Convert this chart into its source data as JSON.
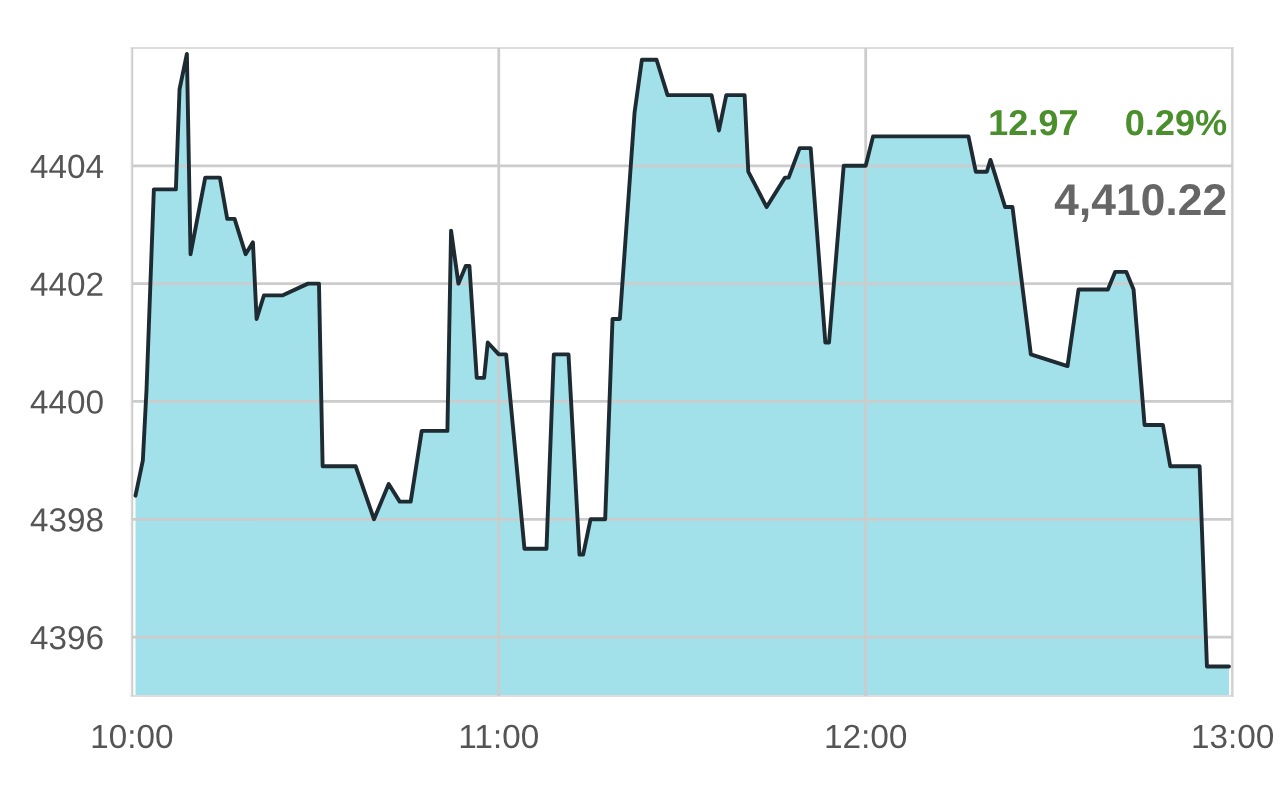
{
  "chart_data": {
    "type": "area",
    "x": [
      10.01,
      10.03,
      10.04,
      10.06,
      10.12,
      10.13,
      10.15,
      10.16,
      10.2,
      10.24,
      10.26,
      10.28,
      10.31,
      10.33,
      10.34,
      10.36,
      10.41,
      10.48,
      10.51,
      10.52,
      10.61,
      10.66,
      10.7,
      10.73,
      10.76,
      10.79,
      10.86,
      10.87,
      10.89,
      10.91,
      10.92,
      10.94,
      10.96,
      10.97,
      11.0,
      11.02,
      11.07,
      11.13,
      11.15,
      11.19,
      11.22,
      11.23,
      11.25,
      11.29,
      11.31,
      11.33,
      11.37,
      11.39,
      11.43,
      11.46,
      11.58,
      11.6,
      11.62,
      11.67,
      11.68,
      11.73,
      11.78,
      11.79,
      11.82,
      11.85,
      11.89,
      11.9,
      11.94,
      12.0,
      12.02,
      12.28,
      12.3,
      12.33,
      12.34,
      12.38,
      12.4,
      12.45,
      12.55,
      12.58,
      12.66,
      12.68,
      12.71,
      12.73,
      12.76,
      12.81,
      12.83,
      12.91,
      12.93,
      12.99
    ],
    "series": [
      {
        "color": "#a2e0ea",
        "values": [
          4398.4,
          4399.0,
          4400.2,
          4403.6,
          4403.6,
          4405.3,
          4405.9,
          4402.5,
          4403.8,
          4403.8,
          4403.1,
          4403.1,
          4402.5,
          4402.7,
          4401.4,
          4401.8,
          4401.8,
          4402.0,
          4402.0,
          4398.9,
          4398.9,
          4398.0,
          4398.6,
          4398.3,
          4398.3,
          4399.5,
          4399.5,
          4402.9,
          4402.0,
          4402.3,
          4402.3,
          4400.4,
          4400.4,
          4401.0,
          4400.8,
          4400.8,
          4397.5,
          4397.5,
          4400.8,
          4400.8,
          4397.4,
          4397.4,
          4398.0,
          4398.0,
          4401.4,
          4401.4,
          4404.9,
          4405.8,
          4405.8,
          4405.2,
          4405.2,
          4404.6,
          4405.2,
          4405.2,
          4403.9,
          4403.3,
          4403.8,
          4403.8,
          4404.3,
          4404.3,
          4401.0,
          4401.0,
          4404.0,
          4404.0,
          4404.5,
          4404.5,
          4403.9,
          4403.9,
          4404.1,
          4403.3,
          4403.3,
          4400.8,
          4400.6,
          4401.9,
          4401.9,
          4402.2,
          4402.2,
          4401.9,
          4399.6,
          4399.6,
          4398.9,
          4398.9,
          4395.5,
          4395.5
        ]
      }
    ],
    "xlim": [
      10,
      13
    ],
    "xticks": [
      {
        "value": 10,
        "label": "10:00"
      },
      {
        "value": 11,
        "label": "11:00"
      },
      {
        "value": 12,
        "label": "12:00"
      },
      {
        "value": 13,
        "label": "13:00"
      }
    ],
    "ylim": [
      4395,
      4406
    ],
    "yticks": [
      4396,
      4398,
      4400,
      4402,
      4404
    ],
    "grid": true,
    "annotations": [
      "12.97",
      "0.29%",
      "4,410.22"
    ]
  }
}
